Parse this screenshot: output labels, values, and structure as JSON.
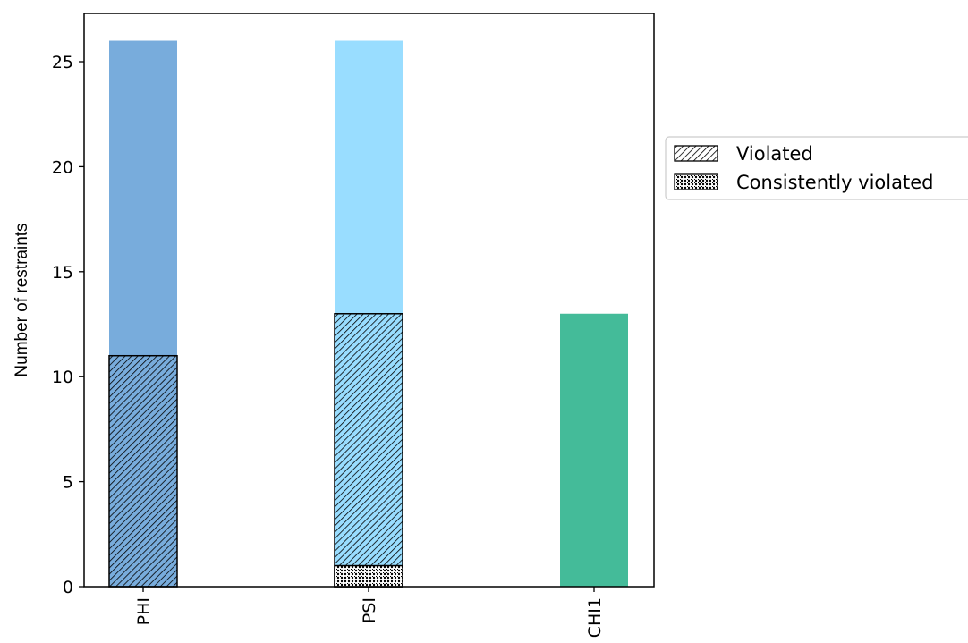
{
  "chart_data": {
    "type": "bar",
    "title": "",
    "xlabel": "",
    "ylabel": "Number of restraints",
    "categories": [
      "PHI",
      "PSI",
      "CHI1"
    ],
    "ylim": [
      0,
      27.3
    ],
    "yticks": [
      0,
      5,
      10,
      15,
      20,
      25
    ],
    "grid": false,
    "legend_position": "right, outside plot",
    "series": [
      {
        "name": "",
        "values": [
          26,
          26,
          13
        ],
        "colors": [
          "#78acdc",
          "#99ddff",
          "#44bb99"
        ]
      },
      {
        "name": "Violated",
        "values": [
          11,
          13,
          0
        ],
        "pattern": "diagonal hatch"
      },
      {
        "name": "Consistently violated",
        "values": [
          0,
          1,
          0
        ],
        "pattern": "dense dot hatch"
      }
    ],
    "legend": [
      "Violated",
      "Consistently violated"
    ]
  }
}
